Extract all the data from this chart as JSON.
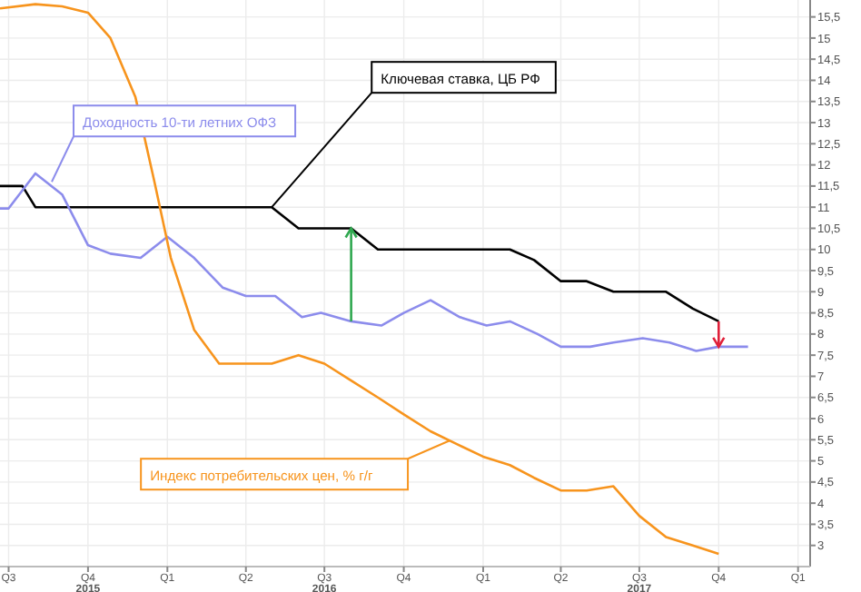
{
  "chart_data": {
    "type": "line",
    "xlim": [
      "2015-06-21",
      "2018-01-15"
    ],
    "xticks": [
      {
        "value": "2015-07-01",
        "label": "Q3"
      },
      {
        "value": "2015-10-01",
        "label": "Q4\n2015"
      },
      {
        "value": "2016-01-01",
        "label": "Q1"
      },
      {
        "value": "2016-04-01",
        "label": "Q2"
      },
      {
        "value": "2016-07-01",
        "label": "Q3\n2016"
      },
      {
        "value": "2016-10-01",
        "label": "Q4"
      },
      {
        "value": "2017-01-01",
        "label": "Q1"
      },
      {
        "value": "2017-04-01",
        "label": "Q2"
      },
      {
        "value": "2017-07-01",
        "label": "Q3\n2017"
      },
      {
        "value": "2017-10-01",
        "label": "Q4"
      },
      {
        "value": "2018-01-01",
        "label": "Q1"
      }
    ],
    "ylim": [
      2.5,
      15.9
    ],
    "yticks": [
      3,
      {
        "value": 3.5,
        "label": "3,5"
      },
      4,
      {
        "value": 4.5,
        "label": "4,5"
      },
      5,
      {
        "value": 5.5,
        "label": "5,5"
      },
      6,
      {
        "value": 6.5,
        "label": "6,5"
      },
      7,
      {
        "value": 7.5,
        "label": "7,5"
      },
      8,
      {
        "value": 8.5,
        "label": "8,5"
      },
      9,
      {
        "value": 9.5,
        "label": "9,5"
      },
      10,
      {
        "value": 10.5,
        "label": "10,5"
      },
      11,
      {
        "value": 11.5,
        "label": "11,5"
      },
      12,
      {
        "value": 12.5,
        "label": "12,5"
      },
      13,
      {
        "value": 13.5,
        "label": "13,5"
      },
      14,
      {
        "value": 14.5,
        "label": "14,5"
      },
      15,
      {
        "value": 15.5,
        "label": "15,5"
      }
    ],
    "grid": true,
    "line_style": "solid",
    "series": [
      {
        "color": "#000000",
        "x": [
          "2015-06-21",
          "2015-07-17",
          "2015-08-01",
          "2016-05-01",
          "2016-06-01",
          "2016-08-01",
          "2016-09-01",
          "2017-02-01",
          "2017-03-01",
          "2017-04-01",
          "2017-05-01",
          "2017-06-01",
          "2017-08-01",
          "2017-09-01",
          "2017-10-01"
        ],
        "values": [
          11.5,
          11.5,
          11.0,
          11.0,
          10.5,
          10.5,
          10.0,
          10.0,
          9.75,
          9.25,
          9.25,
          9.0,
          9.0,
          8.6,
          8.3
        ]
      },
      {
        "color": "#8c8cec",
        "x": [
          "2015-06-21",
          "2015-07-01",
          "2015-08-01",
          "2015-09-01",
          "2015-10-01",
          "2015-10-27",
          "2015-12-01",
          "2016-01-01",
          "2016-02-01",
          "2016-03-05",
          "2016-04-01",
          "2016-05-05",
          "2016-06-05",
          "2016-06-27",
          "2016-08-01",
          "2016-09-05",
          "2016-10-01",
          "2016-11-01",
          "2016-12-05",
          "2017-01-05",
          "2017-02-01",
          "2017-03-05",
          "2017-04-01",
          "2017-05-05",
          "2017-06-01",
          "2017-07-05",
          "2017-08-05",
          "2017-09-05",
          "2017-10-01",
          "2017-11-04"
        ],
        "values": [
          10.97,
          10.97,
          11.8,
          11.3,
          10.1,
          9.9,
          9.8,
          10.3,
          9.8,
          9.1,
          8.9,
          8.9,
          8.4,
          8.5,
          8.3,
          8.2,
          8.5,
          8.8,
          8.4,
          8.2,
          8.3,
          8.0,
          7.7,
          7.7,
          7.8,
          7.9,
          7.8,
          7.6,
          7.7,
          7.7
        ]
      },
      {
        "color": "#f7941d",
        "x": [
          "2015-06-21",
          "2015-08-01",
          "2015-09-01",
          "2015-10-01",
          "2015-10-27",
          "2015-11-25",
          "2015-12-17",
          "2016-01-05",
          "2016-02-01",
          "2016-03-01",
          "2016-04-01",
          "2016-05-01",
          "2016-06-01",
          "2016-07-01",
          "2016-08-01",
          "2016-09-01",
          "2016-10-01",
          "2016-11-01",
          "2016-12-01",
          "2017-01-01",
          "2017-02-01",
          "2017-03-01",
          "2017-04-01",
          "2017-05-01",
          "2017-06-01",
          "2017-07-01",
          "2017-08-01",
          "2017-09-01",
          "2017-10-01"
        ],
        "values": [
          15.7,
          15.8,
          15.75,
          15.6,
          15.0,
          13.6,
          11.6,
          9.8,
          8.1,
          7.3,
          7.3,
          7.3,
          7.5,
          7.3,
          6.9,
          6.5,
          6.1,
          5.7,
          5.4,
          5.1,
          4.9,
          4.6,
          4.3,
          4.3,
          4.4,
          3.7,
          3.2,
          3.0,
          2.8
        ]
      }
    ],
    "annotations": [
      {
        "text": "Ключевая ставка, ЦБ РФ",
        "x": "2016-05-01",
        "y": 11.0
      },
      {
        "text": "Доходность 10-ти летних ОФЗ",
        "x": "2015-08-20",
        "y": 11.6
      },
      "Индекс потребительских цен, % г/г"
    ]
  }
}
